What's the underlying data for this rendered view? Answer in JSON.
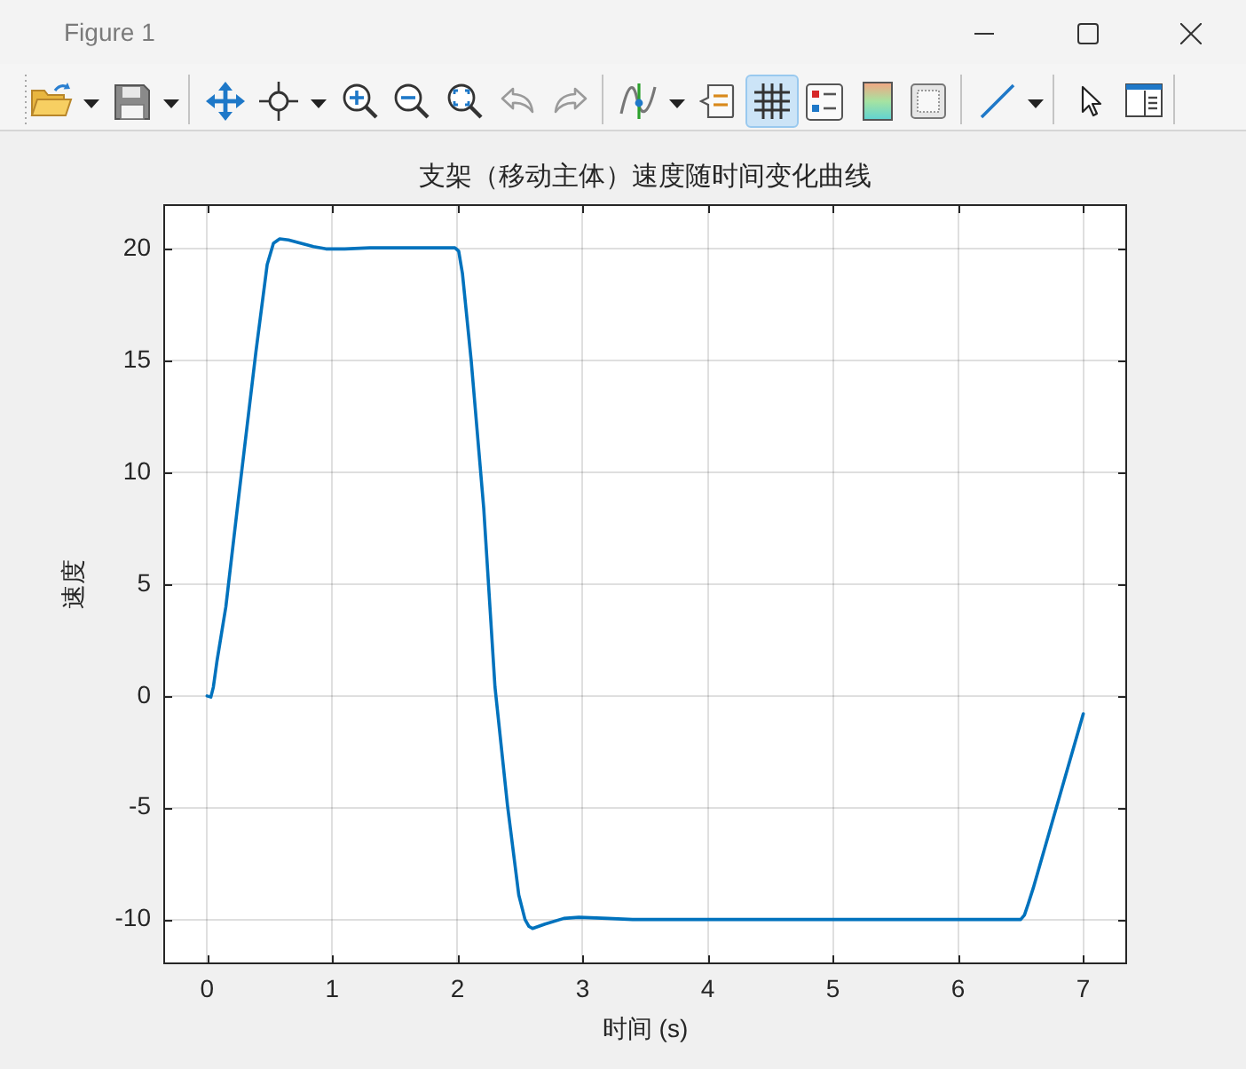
{
  "chart_data": {
    "type": "line",
    "title": "支架（移动主体）速度随时间变化曲线",
    "xlabel": "时间 (s)",
    "ylabel": "速度",
    "annotations": [
      "Figure 1"
    ],
    "series": [
      {
        "color": "#0072bd",
        "x": [
          0,
          0.03,
          0.05,
          0.08,
          0.15,
          0.25,
          0.39,
          0.48,
          0.53,
          0.58,
          0.65,
          0.75,
          0.85,
          0.95,
          1.1,
          1.3,
          1.6,
          1.9,
          1.98,
          2.01,
          2.04,
          2.11,
          2.21,
          2.3,
          2.4,
          2.49,
          2.54,
          2.57,
          2.6,
          2.7,
          2.85,
          2.97,
          3.2,
          3.4,
          4,
          5,
          6,
          6.5,
          6.53,
          6.56,
          6.6,
          7
        ],
        "values": [
          0,
          -0.05,
          0.4,
          1.6,
          4,
          8.8,
          15.4,
          19.3,
          20.25,
          20.45,
          20.4,
          20.25,
          20.1,
          20,
          20,
          20.05,
          20.05,
          20.05,
          20.05,
          19.9,
          18.9,
          15,
          8.4,
          0.4,
          -4.9,
          -8.9,
          -10,
          -10.3,
          -10.4,
          -10.2,
          -9.95,
          -9.9,
          -9.95,
          -10,
          -10,
          -10,
          -10,
          -10,
          -9.8,
          -9.3,
          -8.6,
          -0.8
        ]
      }
    ],
    "xlim": [
      -0.35,
      7.35
    ],
    "xticks": [
      0,
      1,
      2,
      3,
      4,
      5,
      6,
      7
    ],
    "ylim": [
      -12,
      22
    ],
    "yticks": [
      -10,
      -5,
      0,
      5,
      10,
      15,
      20
    ],
    "grid": true
  }
}
